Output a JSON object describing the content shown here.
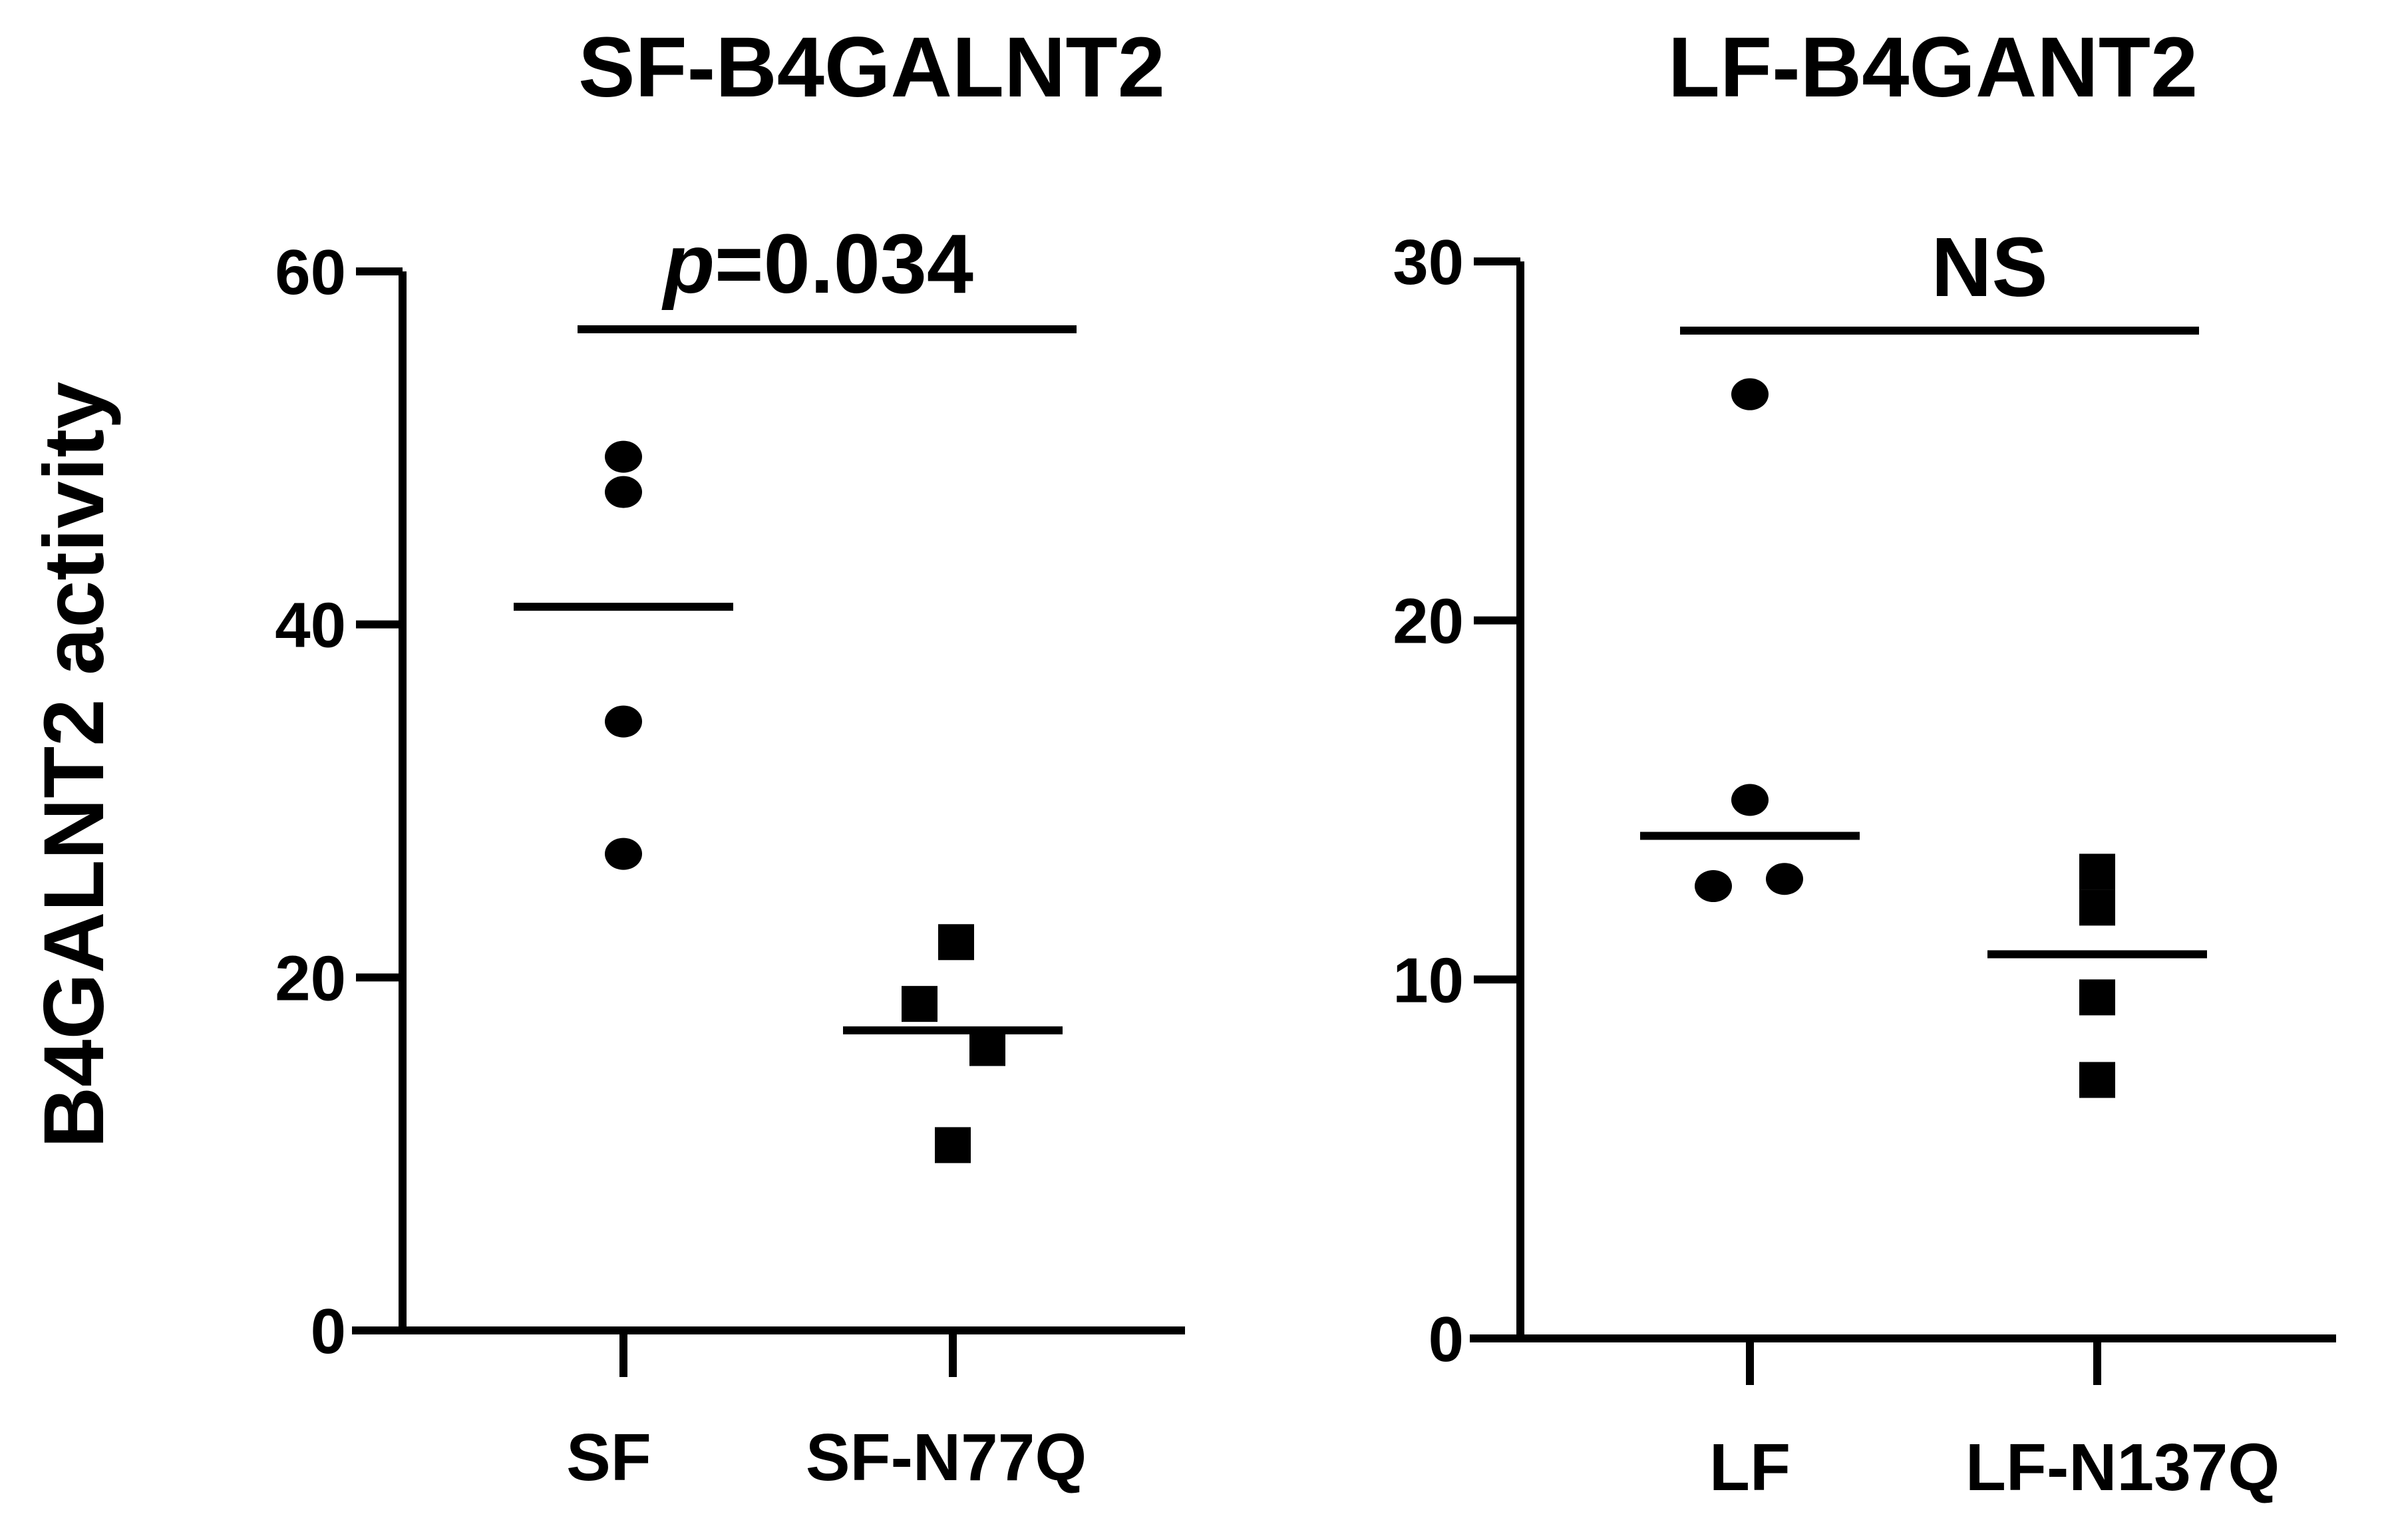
{
  "chart_data": [
    {
      "type": "scatter",
      "title": "SF-B4GALNT2",
      "ylabel": "B4GALNT2 activity",
      "ylim": [
        0,
        60
      ],
      "yticks": [
        "0",
        "20",
        "40",
        "60"
      ],
      "categories": [
        "SF",
        "SF-N77Q"
      ],
      "significance": {
        "prefix": "p",
        "value": "=0.034"
      },
      "groups": [
        {
          "category": "SF",
          "marker": "circle",
          "values": [
            49.5,
            47.5,
            34.5,
            27
          ],
          "mean": 41
        },
        {
          "category": "SF-N77Q",
          "marker": "square",
          "values": [
            22,
            18.5,
            16,
            10.5
          ],
          "mean": 17
        }
      ]
    },
    {
      "type": "scatter",
      "title": "LF-B4GANT2",
      "ylim": [
        0,
        30
      ],
      "yticks": [
        "0",
        "10",
        "20",
        "30"
      ],
      "categories": [
        "LF",
        "LF-N137Q"
      ],
      "significance": {
        "text": "NS"
      },
      "groups": [
        {
          "category": "LF",
          "marker": "circle",
          "values": [
            26.3,
            15,
            12.6,
            12.8
          ],
          "mean": 14
        },
        {
          "category": "LF-N137Q",
          "marker": "square",
          "values": [
            13,
            12,
            9.5,
            7.2
          ],
          "mean": 10.7
        }
      ]
    }
  ]
}
